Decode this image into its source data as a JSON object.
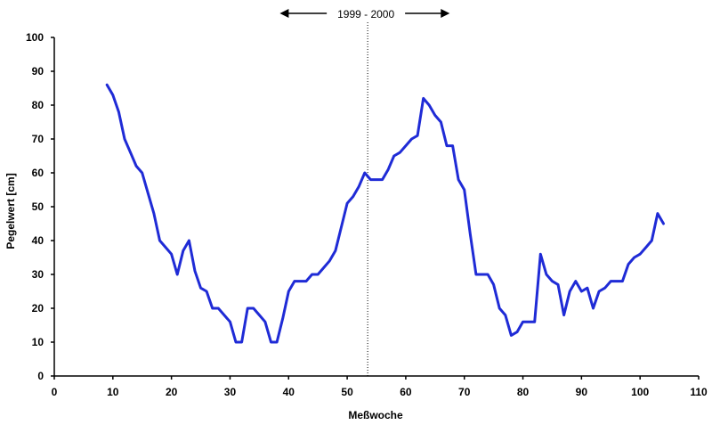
{
  "chart_data": {
    "type": "line",
    "title": "",
    "xlabel": "Meßwoche",
    "ylabel": "Pegelwert [cm]",
    "xlim": [
      0,
      110
    ],
    "ylim": [
      0,
      100
    ],
    "xticks": [
      0,
      10,
      20,
      30,
      40,
      50,
      60,
      70,
      80,
      90,
      100,
      110
    ],
    "yticks": [
      0,
      10,
      20,
      30,
      40,
      50,
      60,
      70,
      80,
      90,
      100
    ],
    "grid": false,
    "legend": "none",
    "annotation": {
      "text": "1999 - 2000",
      "divider_x": 53.5,
      "arrow_from_x": 38.5,
      "arrow_to_x": 67.5
    },
    "colors": {
      "series": "#1f2bd6",
      "axis": "#000000",
      "divider": "#000000"
    },
    "series": [
      {
        "x": [
          9,
          10,
          11,
          12,
          13,
          14,
          15,
          16,
          17,
          18,
          19,
          20,
          21,
          22,
          23,
          24,
          25,
          26,
          27,
          28,
          29,
          30,
          31,
          32,
          33,
          34,
          35,
          36,
          37,
          38,
          39,
          40,
          41,
          42,
          43,
          44,
          45,
          46,
          47,
          48,
          49,
          50,
          51,
          52,
          53,
          54,
          55,
          56,
          57,
          58,
          59,
          60,
          61,
          62,
          63,
          64,
          65,
          66,
          67,
          68,
          69,
          70,
          71,
          72,
          73,
          74,
          75,
          76,
          77,
          78,
          79,
          80,
          81,
          82,
          83,
          84,
          85,
          86,
          87,
          88,
          89,
          90,
          91,
          92,
          93,
          94,
          95,
          96,
          97,
          98,
          99,
          100,
          101,
          102,
          103,
          104
        ],
        "y": [
          86,
          83,
          78,
          70,
          66,
          62,
          60,
          54,
          48,
          40,
          38,
          36,
          30,
          37,
          40,
          31,
          26,
          25,
          20,
          20,
          18,
          16,
          10,
          10,
          20,
          20,
          18,
          16,
          10,
          10,
          17,
          25,
          28,
          28,
          28,
          30,
          30,
          32,
          34,
          37,
          44,
          51,
          53,
          56,
          60,
          58,
          58,
          58,
          61,
          65,
          66,
          68,
          70,
          71,
          82,
          80,
          77,
          75,
          68,
          68,
          58,
          55,
          42,
          30,
          30,
          30,
          27,
          20,
          18,
          12,
          13,
          16,
          16,
          16,
          36,
          30,
          28,
          27,
          18,
          25,
          28,
          25,
          26,
          20,
          25,
          26,
          28,
          28,
          28,
          33,
          35,
          36,
          38,
          40,
          48,
          45
        ]
      }
    ]
  }
}
